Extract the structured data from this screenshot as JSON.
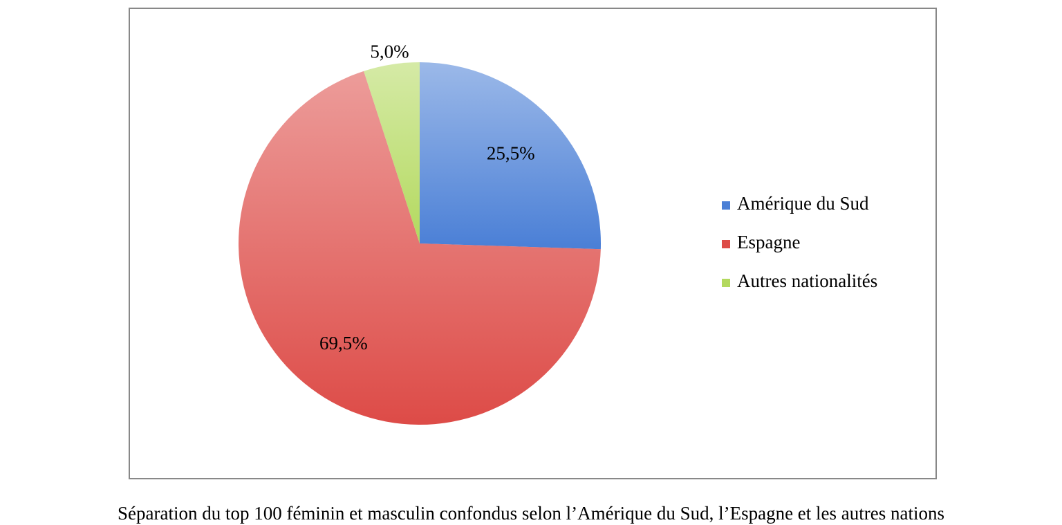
{
  "chart_data": {
    "type": "pie",
    "title": "Séparation du top 100 féminin et masculin confondus selon l’Amérique du Sud, l’Espagne et les autres nations",
    "categories": [
      "Amérique du Sud",
      "Espagne",
      "Autres nationalités"
    ],
    "values": [
      25.5,
      69.5,
      5.0
    ],
    "value_labels": [
      "25,5%",
      "69,5%",
      "5,0%"
    ],
    "colors": [
      "#4a7fd6",
      "#dd4b47",
      "#b3d95e"
    ],
    "legend": "right"
  }
}
